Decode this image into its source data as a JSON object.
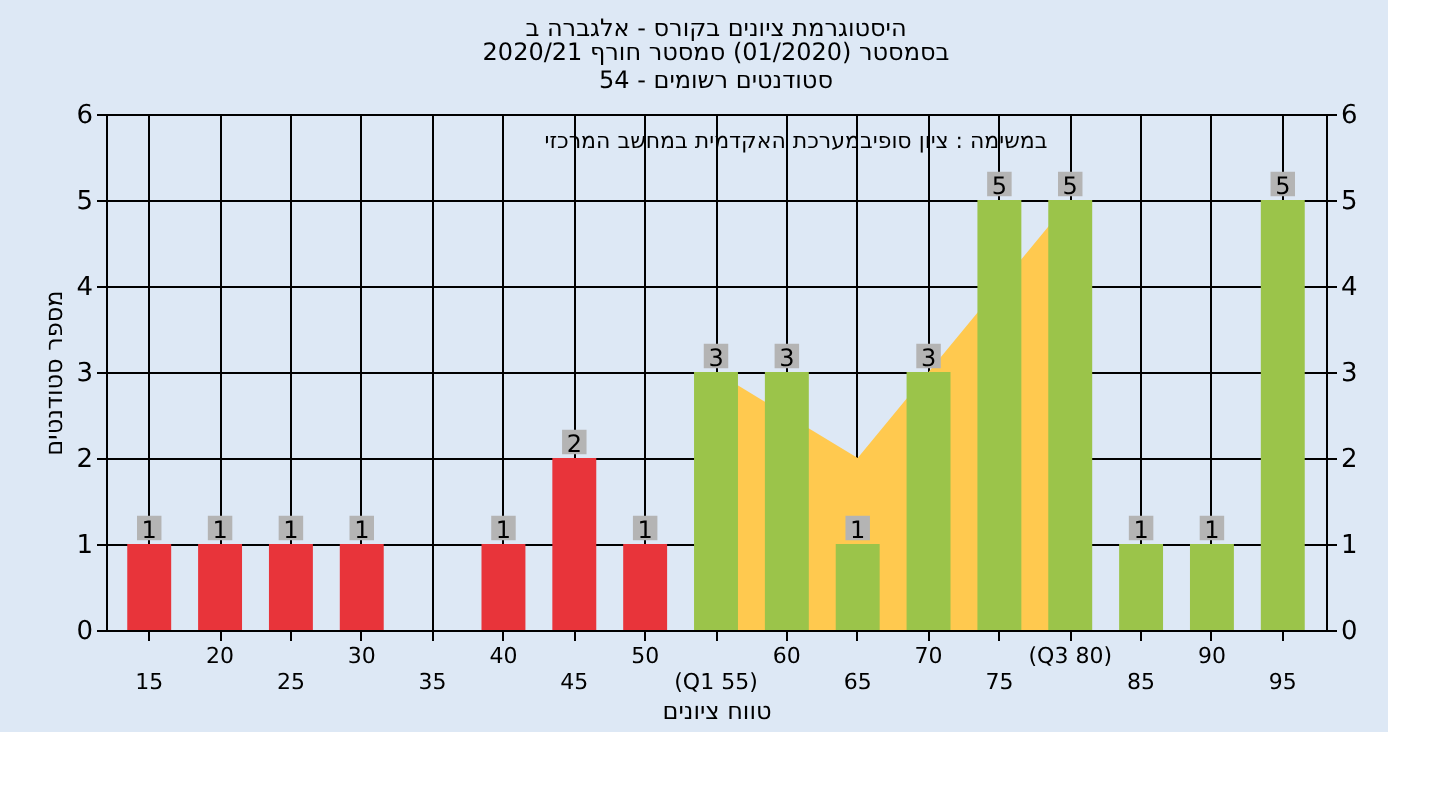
{
  "chart_data": {
    "type": "bar",
    "title": "היסטוגרמת ציונים בקורס - אלגברה ב",
    "subtitle": "בסמסטר  (01/2020)  סמסטר חורף  2020/21\nסטודנטים רשומים - 54",
    "xlabel": "טווח ציונים",
    "ylabel": "מספר סטודנטים",
    "y2label": null,
    "annotations": [
      "במשימה : ציון סופיבמערכת האקדמית במחשב המרכזי"
    ],
    "categories": [
      "15",
      "20",
      "25",
      "30",
      "35",
      "40",
      "45",
      "50",
      "(Q1 55)",
      "60",
      "65",
      "70",
      "75",
      "(Q3 80)",
      "85",
      "90",
      "95"
    ],
    "series": [
      {
        "type": "area",
        "color": "#ffc94f",
        "values": [
          null,
          null,
          null,
          null,
          null,
          null,
          null,
          null,
          3,
          null,
          2,
          3,
          null,
          5,
          null,
          null,
          null
        ]
      },
      {
        "colors": [
          "#e8343a",
          "#e8343a",
          "#e8343a",
          "#e8343a",
          "#e8343a",
          "#e8343a",
          "#e8343a",
          "#e8343a",
          "#9bc44a",
          "#9bc44a",
          "#9bc44a",
          "#9bc44a",
          "#9bc44a",
          "#9bc44a",
          "#9bc44a",
          "#9bc44a",
          "#9bc44a"
        ],
        "values": [
          1,
          1,
          1,
          1,
          0,
          1,
          2,
          1,
          3,
          3,
          1,
          3,
          5,
          5,
          1,
          1,
          5
        ],
        "value_labels": [
          "1",
          "1",
          "1",
          "1",
          null,
          "1",
          "2",
          "1",
          "3",
          "3",
          "1",
          "3",
          "5",
          "5",
          "1",
          "1",
          "5"
        ]
      }
    ],
    "ylim": [
      0,
      6
    ],
    "yticks": [
      0,
      1,
      2,
      3,
      4,
      5,
      6
    ],
    "y2lim": [
      0,
      6
    ],
    "y2ticks": [
      0,
      1,
      2,
      3,
      4,
      5,
      6
    ],
    "grid": true
  }
}
